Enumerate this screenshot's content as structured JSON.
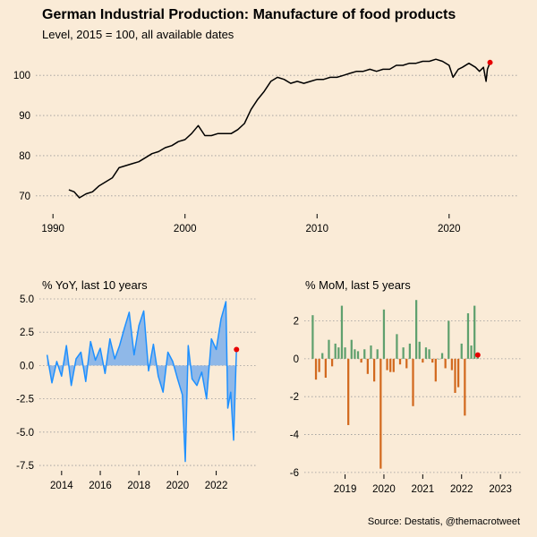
{
  "header": {
    "title": "German Industrial Production: Manufacture of food products",
    "subtitle": "Level, 2015 = 100, all available dates"
  },
  "footer": {
    "source": "Source: Destatis, @themacrotweet"
  },
  "colors": {
    "background": "#FAEBD7",
    "level_line": "#000000",
    "yoy_line": "#1E90FF",
    "yoy_fill": "#8FB8E8",
    "mom_positive": "#5FA06E",
    "mom_negative": "#D2691E",
    "highlight": "#E60000",
    "grid": "#9A9A9A"
  },
  "chart_data": [
    {
      "type": "line",
      "title": "Level, 2015 = 100, all available dates",
      "xticks": [
        1990,
        2000,
        2010,
        2020
      ],
      "yticks": [
        70,
        80,
        90,
        100
      ],
      "xlim": [
        1988.7,
        2025.3
      ],
      "ylim": [
        65.5,
        106.5
      ],
      "grid": "horizontal dotted",
      "x": [
        1991.2,
        1991.6,
        1992.0,
        1992.5,
        1993.0,
        1993.5,
        1994.0,
        1994.5,
        1995.0,
        1995.5,
        1996.0,
        1996.5,
        1997.0,
        1997.5,
        1998.0,
        1998.5,
        1999.0,
        1999.5,
        2000.0,
        2000.5,
        2001.0,
        2001.5,
        2002.0,
        2002.5,
        2003.0,
        2003.5,
        2004.0,
        2004.5,
        2005.0,
        2005.5,
        2006.0,
        2006.5,
        2007.0,
        2007.5,
        2008.0,
        2008.5,
        2009.0,
        2009.5,
        2010.0,
        2010.5,
        2011.0,
        2011.5,
        2012.0,
        2012.5,
        2013.0,
        2013.5,
        2014.0,
        2014.5,
        2015.0,
        2015.5,
        2016.0,
        2016.5,
        2017.0,
        2017.5,
        2018.0,
        2018.5,
        2019.0,
        2019.5,
        2020.0,
        2020.3,
        2020.7,
        2021.0,
        2021.5,
        2022.0,
        2022.3,
        2022.6,
        2022.8,
        2022.9,
        2023.1
      ],
      "values": [
        71.5,
        71.0,
        69.5,
        70.5,
        71.0,
        72.5,
        73.5,
        74.5,
        77.0,
        77.5,
        78.0,
        78.5,
        79.5,
        80.5,
        81.0,
        82.0,
        82.5,
        83.5,
        84.0,
        85.5,
        87.5,
        85.0,
        85.0,
        85.5,
        85.5,
        85.5,
        86.5,
        88.0,
        91.5,
        94.0,
        96.0,
        98.5,
        99.5,
        99.0,
        98.0,
        98.5,
        98.0,
        98.5,
        99.0,
        99.0,
        99.5,
        99.5,
        100.0,
        100.5,
        101.0,
        101.0,
        101.5,
        101.0,
        101.5,
        101.5,
        102.5,
        102.5,
        103.0,
        103.0,
        103.5,
        103.5,
        104.0,
        103.5,
        102.5,
        99.5,
        101.5,
        102.0,
        103.0,
        102.0,
        101.0,
        102.0,
        98.5,
        101.5,
        103.2
      ],
      "last_value": 103.2
    },
    {
      "type": "area",
      "title": "% YoY, last 10 years",
      "xticks": [
        2014,
        2016,
        2018,
        2020,
        2022
      ],
      "yticks": [
        5.0,
        2.5,
        0.0,
        -2.5,
        -5.0,
        -7.5
      ],
      "ytick_labels": [
        "5.0",
        "2.5",
        "0.0",
        "-2.5",
        "-5.0",
        "-7.5"
      ],
      "xlim": [
        2012.85,
        2024.15
      ],
      "ylim": [
        -7.9,
        5.2
      ],
      "grid": "horizontal dotted",
      "x": [
        2013.25,
        2013.5,
        2013.75,
        2014.0,
        2014.25,
        2014.5,
        2014.75,
        2015.0,
        2015.25,
        2015.5,
        2015.75,
        2016.0,
        2016.25,
        2016.5,
        2016.75,
        2017.0,
        2017.25,
        2017.5,
        2017.75,
        2018.0,
        2018.25,
        2018.5,
        2018.75,
        2019.0,
        2019.25,
        2019.5,
        2019.75,
        2020.0,
        2020.25,
        2020.4,
        2020.55,
        2020.75,
        2021.0,
        2021.25,
        2021.5,
        2021.75,
        2022.0,
        2022.25,
        2022.5,
        2022.6,
        2022.75,
        2022.9,
        2023.05
      ],
      "values": [
        0.8,
        -1.3,
        0.3,
        -0.8,
        1.5,
        -1.5,
        0.5,
        1.0,
        -1.2,
        1.8,
        0.4,
        1.3,
        -0.6,
        2.0,
        0.5,
        1.5,
        2.8,
        4.0,
        0.8,
        3.0,
        4.1,
        -0.4,
        1.6,
        -0.8,
        -2.0,
        1.0,
        0.3,
        -1.0,
        -2.2,
        -7.2,
        1.5,
        -1.0,
        -1.5,
        -0.5,
        -2.5,
        2.0,
        1.2,
        3.5,
        4.8,
        -3.2,
        -2.0,
        -5.6,
        1.2
      ],
      "last_value": 1.2
    },
    {
      "type": "bar",
      "title": "% MoM, last 5 years",
      "xticks": [
        2019,
        2020,
        2021,
        2022,
        2023
      ],
      "yticks": [
        2,
        0,
        -2,
        -4,
        -6
      ],
      "xlim": [
        2017.95,
        2023.55
      ],
      "ylim": [
        -6.1,
        3.3
      ],
      "grid": "horizontal dotted",
      "x_start": "2018-03",
      "values": [
        2.3,
        -1.1,
        -0.7,
        0.3,
        -1.0,
        1.0,
        -0.4,
        0.8,
        0.6,
        2.8,
        0.6,
        -3.5,
        1.0,
        0.5,
        0.4,
        -0.2,
        0.5,
        -0.8,
        0.7,
        -1.2,
        0.5,
        -5.8,
        2.6,
        -0.6,
        -0.7,
        -0.7,
        1.3,
        -0.3,
        0.6,
        -0.5,
        0.8,
        -2.5,
        3.1,
        0.9,
        -0.2,
        0.6,
        0.5,
        -0.2,
        -1.2,
        0.0,
        0.3,
        -0.5,
        2.0,
        -0.6,
        -1.8,
        -1.5,
        0.8,
        -3.0,
        2.4,
        0.7,
        2.8,
        0.2
      ],
      "last_value": 0.2
    }
  ]
}
